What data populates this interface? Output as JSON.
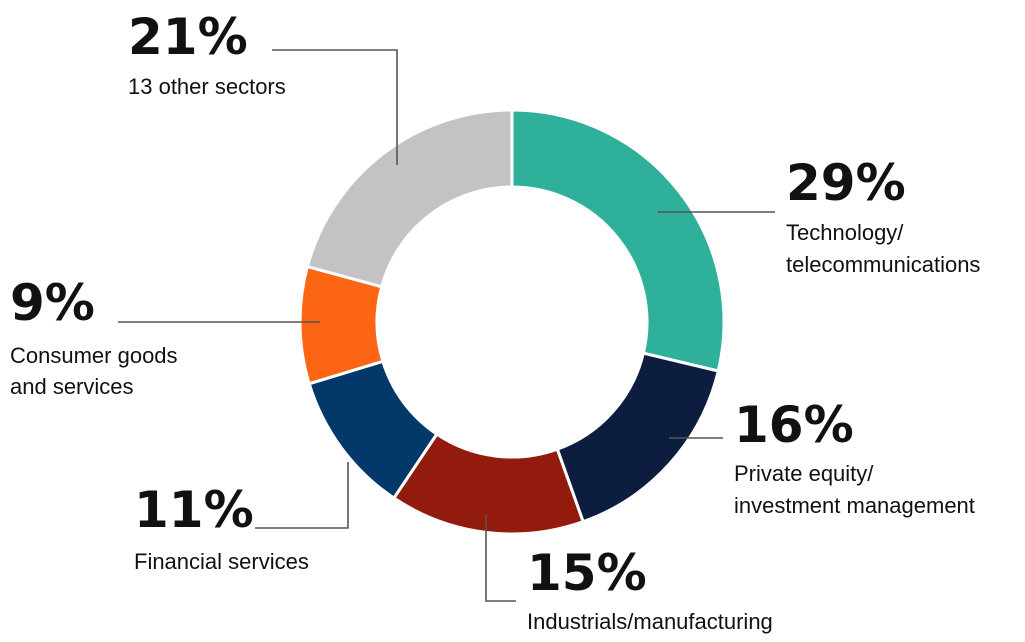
{
  "chart_data": {
    "type": "pie",
    "variant": "donut",
    "title": "",
    "slices": [
      {
        "id": "tech",
        "value": 29,
        "value_label": "29%",
        "label_lines": [
          "Technology/",
          "telecommunications"
        ],
        "color": "#2fb09a"
      },
      {
        "id": "pe",
        "value": 16,
        "value_label": "16%",
        "label_lines": [
          "Private equity/",
          "investment management"
        ],
        "color": "#0c1d3f"
      },
      {
        "id": "ind",
        "value": 15,
        "value_label": "15%",
        "label_lines": [
          "Industrials/manufacturing"
        ],
        "color": "#921b0e"
      },
      {
        "id": "fin",
        "value": 11,
        "value_label": "11%",
        "label_lines": [
          "Financial services"
        ],
        "color": "#03386b"
      },
      {
        "id": "cons",
        "value": 9,
        "value_label": "9%",
        "label_lines": [
          "Consumer goods",
          "and services"
        ],
        "color": "#fb6513"
      },
      {
        "id": "other",
        "value": 21,
        "value_label": "21%",
        "label_lines": [
          "13 other sectors"
        ],
        "color": "#c3c2c5"
      }
    ]
  }
}
